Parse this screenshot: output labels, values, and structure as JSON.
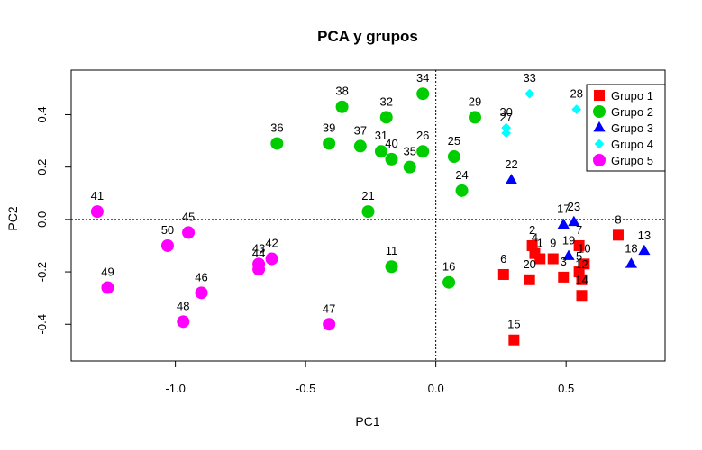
{
  "chart_data": {
    "type": "scatter",
    "title": "PCA y grupos",
    "xlabel": "PC1",
    "ylabel": "PC2",
    "xlim": [
      -1.4,
      0.88
    ],
    "ylim": [
      -0.54,
      0.57
    ],
    "xticks": [
      -1.0,
      -0.5,
      0.0,
      0.5
    ],
    "xtick_labels": [
      "-1.0",
      "-0.5",
      "0.0",
      "0.5"
    ],
    "yticks": [
      -0.4,
      -0.2,
      0.0,
      0.2,
      0.4
    ],
    "ytick_labels": [
      "-0.4",
      "-0.2",
      "0.0",
      "0.2",
      "0.4"
    ],
    "reference_lines": {
      "x": 0,
      "y": 0,
      "style": "dotted"
    },
    "legend": {
      "position": "top-right"
    },
    "series": [
      {
        "name": "Grupo 1",
        "color": "#ff0000",
        "marker": "square",
        "points": [
          {
            "label": "2",
            "x": 0.37,
            "y": -0.1
          },
          {
            "label": "4",
            "x": 0.38,
            "y": -0.13
          },
          {
            "label": "1",
            "x": 0.4,
            "y": -0.15
          },
          {
            "label": "6",
            "x": 0.26,
            "y": -0.21
          },
          {
            "label": "20",
            "x": 0.36,
            "y": -0.23
          },
          {
            "label": "9",
            "x": 0.45,
            "y": -0.15
          },
          {
            "label": "3",
            "x": 0.49,
            "y": -0.22
          },
          {
            "label": "7",
            "x": 0.55,
            "y": -0.1
          },
          {
            "label": "10",
            "x": 0.57,
            "y": -0.17
          },
          {
            "label": "5",
            "x": 0.55,
            "y": -0.2
          },
          {
            "label": "12",
            "x": 0.56,
            "y": -0.23
          },
          {
            "label": "14",
            "x": 0.56,
            "y": -0.29
          },
          {
            "label": "8",
            "x": 0.7,
            "y": -0.06
          },
          {
            "label": "15",
            "x": 0.3,
            "y": -0.46
          }
        ]
      },
      {
        "name": "Grupo 2",
        "color": "#00cd00",
        "marker": "circle",
        "points": [
          {
            "label": "34",
            "x": -0.05,
            "y": 0.48
          },
          {
            "label": "38",
            "x": -0.36,
            "y": 0.43
          },
          {
            "label": "32",
            "x": -0.19,
            "y": 0.39
          },
          {
            "label": "29",
            "x": 0.15,
            "y": 0.39
          },
          {
            "label": "36",
            "x": -0.61,
            "y": 0.29
          },
          {
            "label": "39",
            "x": -0.41,
            "y": 0.29
          },
          {
            "label": "37",
            "x": -0.29,
            "y": 0.28
          },
          {
            "label": "31",
            "x": -0.21,
            "y": 0.26
          },
          {
            "label": "40",
            "x": -0.17,
            "y": 0.23
          },
          {
            "label": "35",
            "x": -0.1,
            "y": 0.2
          },
          {
            "label": "26",
            "x": -0.05,
            "y": 0.26
          },
          {
            "label": "25",
            "x": 0.07,
            "y": 0.24
          },
          {
            "label": "24",
            "x": 0.1,
            "y": 0.11
          },
          {
            "label": "21",
            "x": -0.26,
            "y": 0.03
          },
          {
            "label": "11",
            "x": -0.17,
            "y": -0.18
          },
          {
            "label": "16",
            "x": 0.05,
            "y": -0.24
          }
        ]
      },
      {
        "name": "Grupo 3",
        "color": "#0000ff",
        "marker": "triangle",
        "points": [
          {
            "label": "22",
            "x": 0.29,
            "y": 0.15
          },
          {
            "label": "17",
            "x": 0.49,
            "y": -0.02
          },
          {
            "label": "23",
            "x": 0.53,
            "y": -0.01
          },
          {
            "label": "19",
            "x": 0.51,
            "y": -0.14
          },
          {
            "label": "13",
            "x": 0.8,
            "y": -0.12
          },
          {
            "label": "18",
            "x": 0.75,
            "y": -0.17
          }
        ]
      },
      {
        "name": "Grupo 4",
        "color": "#00ffff",
        "marker": "diamond",
        "points": [
          {
            "label": "33",
            "x": 0.36,
            "y": 0.48
          },
          {
            "label": "28",
            "x": 0.54,
            "y": 0.42
          },
          {
            "label": "30",
            "x": 0.27,
            "y": 0.35
          },
          {
            "label": "27",
            "x": 0.27,
            "y": 0.33
          }
        ]
      },
      {
        "name": "Grupo 5",
        "color": "#ff00ff",
        "marker": "circle",
        "points": [
          {
            "label": "41",
            "x": -1.3,
            "y": 0.03
          },
          {
            "label": "45",
            "x": -0.95,
            "y": -0.05
          },
          {
            "label": "50",
            "x": -1.03,
            "y": -0.1
          },
          {
            "label": "43",
            "x": -0.68,
            "y": -0.17
          },
          {
            "label": "44",
            "x": -0.68,
            "y": -0.19
          },
          {
            "label": "42",
            "x": -0.63,
            "y": -0.15
          },
          {
            "label": "49",
            "x": -1.26,
            "y": -0.26
          },
          {
            "label": "46",
            "x": -0.9,
            "y": -0.28
          },
          {
            "label": "48",
            "x": -0.97,
            "y": -0.39
          },
          {
            "label": "47",
            "x": -0.41,
            "y": -0.4
          }
        ]
      }
    ]
  }
}
